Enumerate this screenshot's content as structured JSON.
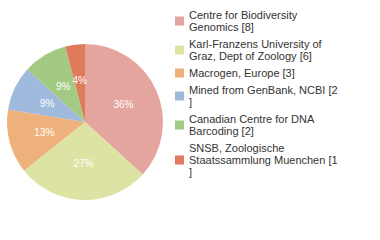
{
  "chart_data": {
    "type": "pie",
    "categories": [
      "Centre for Biodiversity Genomics [8]",
      "Karl-Franzens University of Graz, Dept of Zoology [6]",
      "Macrogen, Europe [3]",
      "Mined from GenBank, NCBI [2]",
      "Canadian Centre for DNA Barcoding [2]",
      "SNSB, Zoologische Staatssammlung Muenchen [1]"
    ],
    "values": [
      36,
      27,
      13,
      9,
      9,
      4
    ],
    "value_labels": [
      "36%",
      "27%",
      "13%",
      "9%",
      "9%",
      "4%"
    ],
    "colors": [
      "#e3a59d",
      "#dde4a3",
      "#efb17c",
      "#9fbadc",
      "#a2ca82",
      "#df7a5b"
    ],
    "data_labels": true,
    "legend": "right"
  }
}
